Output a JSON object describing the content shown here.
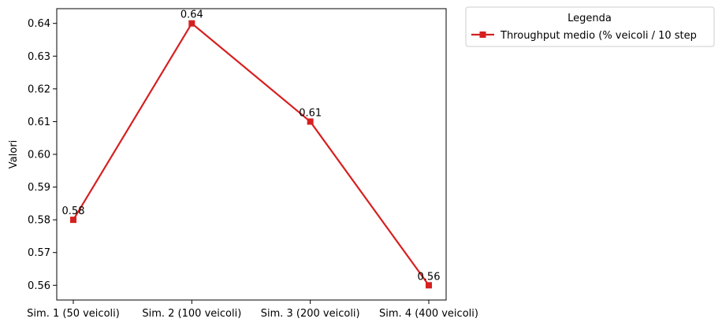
{
  "chart_data": {
    "type": "line",
    "title": "",
    "xlabel": "",
    "ylabel": "Valori",
    "categories": [
      "Sim. 1 (50 veicoli)",
      "Sim. 2 (100 veicoli)",
      "Sim. 3 (200 veicoli)",
      "Sim. 4 (400 veicoli)"
    ],
    "series": [
      {
        "name": "Throughput medio (% veicoli / 10 step",
        "values": [
          0.58,
          0.64,
          0.61,
          0.56
        ],
        "color": "#d62020",
        "marker": "square"
      }
    ],
    "data_labels": [
      "0.58",
      "0.64",
      "0.61",
      "0.56"
    ],
    "yticks": [
      0.56,
      0.57,
      0.58,
      0.59,
      0.6,
      0.61,
      0.62,
      0.63,
      0.64
    ],
    "ytick_labels": [
      "0.56",
      "0.57",
      "0.58",
      "0.59",
      "0.60",
      "0.61",
      "0.62",
      "0.63",
      "0.64"
    ],
    "ylim": [
      0.5555,
      0.6445
    ],
    "grid": false,
    "legend": {
      "title": "Legenda",
      "placement": "outside-top-right"
    }
  }
}
